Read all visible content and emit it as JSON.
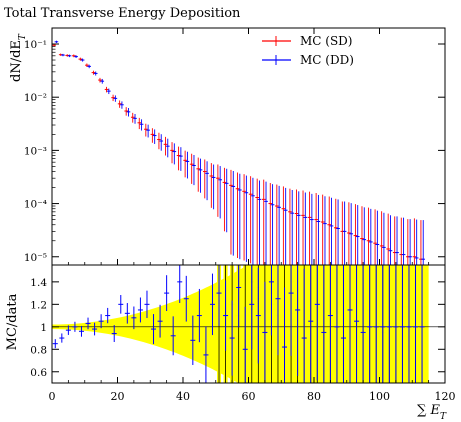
{
  "chart_data": {
    "type": "scatter",
    "title": "Total Transverse Energy Deposition",
    "xlabel": "∑ E_T",
    "ylabel": "dN/dE_T",
    "ratio_ylabel": "MC/data",
    "xlim": [
      0,
      120
    ],
    "ylim": [
      7e-06,
      0.2
    ],
    "ratio_ylim": [
      0.5,
      1.55
    ],
    "yscale": "log",
    "grid": false,
    "legend_position": "top-right",
    "x_ticks": [
      "0",
      "20",
      "40",
      "60",
      "80",
      "100",
      "120"
    ],
    "y_ticks": [
      "10⁻¹",
      "10⁻²",
      "10⁻³",
      "10⁻⁴",
      "10⁻⁵"
    ],
    "y_tick_values": [
      0.1,
      0.01,
      0.001,
      0.0001,
      1e-05
    ],
    "ratio_ticks": [
      "0.6",
      "0.8",
      "1",
      "1.2",
      "1.4"
    ],
    "ratio_tick_values": [
      0.6,
      0.8,
      1.0,
      1.2,
      1.4
    ],
    "series": [
      {
        "name": "MC (SD)",
        "color": "#ff0000",
        "x": [
          1,
          3,
          5,
          7,
          9,
          11,
          13,
          15,
          17,
          19,
          21,
          23,
          25,
          27,
          29,
          31,
          33,
          35,
          37,
          39,
          41,
          43,
          45,
          47,
          49,
          51,
          53,
          55,
          57,
          59,
          61,
          63,
          65,
          67,
          69,
          71,
          73,
          75,
          77,
          79,
          81,
          83,
          85,
          87,
          89,
          91,
          93,
          95,
          97,
          99,
          101,
          103,
          105,
          107,
          109,
          111,
          113
        ],
        "y": [
          0.095,
          0.063,
          0.061,
          0.06,
          0.052,
          0.04,
          0.029,
          0.021,
          0.014,
          0.0098,
          0.0075,
          0.0055,
          0.0042,
          0.0033,
          0.0025,
          0.002,
          0.0016,
          0.0013,
          0.001,
          0.0008,
          0.00065,
          0.00055,
          0.00045,
          0.0004,
          0.00033,
          0.0003,
          0.00025,
          0.00022,
          0.00019,
          0.00017,
          0.00015,
          0.00013,
          0.00012,
          0.0001,
          9e-05,
          8e-05,
          7e-05,
          6.5e-05,
          6e-05,
          5.5e-05,
          5e-05,
          4.5e-05,
          4e-05,
          3.5e-05,
          3e-05,
          2.8e-05,
          2.5e-05,
          2.2e-05,
          2e-05,
          1.8e-05,
          1.6e-05,
          1.4e-05,
          1.2e-05,
          1.1e-05,
          1e-05,
          1e-05,
          9e-06
        ]
      },
      {
        "name": "MC (DD)",
        "color": "#0000ff",
        "x": [
          1,
          3,
          5,
          7,
          9,
          11,
          13,
          15,
          17,
          19,
          21,
          23,
          25,
          27,
          29,
          31,
          33,
          35,
          37,
          39,
          41,
          43,
          45,
          47,
          49,
          51,
          53,
          55,
          57,
          59,
          61,
          63,
          65,
          67,
          69,
          71,
          73,
          75,
          77,
          79,
          81,
          83,
          85,
          87,
          89,
          91,
          93,
          95,
          97,
          99,
          101,
          103,
          105,
          107,
          109,
          111,
          113
        ],
        "y": [
          0.11,
          0.062,
          0.06,
          0.058,
          0.05,
          0.038,
          0.028,
          0.02,
          0.013,
          0.0095,
          0.0072,
          0.0053,
          0.004,
          0.0031,
          0.0024,
          0.0019,
          0.0015,
          0.0012,
          0.00095,
          0.00078,
          0.00062,
          0.00052,
          0.00043,
          0.00037,
          0.00031,
          0.00028,
          0.00024,
          0.00021,
          0.00018,
          0.00016,
          0.00014,
          0.00012,
          0.00011,
          9.5e-05,
          8.5e-05,
          7.5e-05,
          6.6e-05,
          6e-05,
          5.5e-05,
          5e-05,
          4.6e-05,
          4.2e-05,
          3.8e-05,
          3.4e-05,
          3e-05,
          2.7e-05,
          2.4e-05,
          2.1e-05,
          1.9e-05,
          1.7e-05,
          1.5e-05,
          1.3e-05,
          1.2e-05,
          1.1e-05,
          1e-05,
          9.5e-06,
          9e-06
        ]
      }
    ],
    "ratio_series": [
      {
        "name": "MC (DD)",
        "color": "#0000ff",
        "x": [
          1,
          3,
          5,
          7,
          9,
          11,
          13,
          15,
          17,
          19,
          21,
          23,
          25,
          27,
          29,
          31,
          33,
          35,
          37,
          39,
          41,
          43,
          45,
          47,
          49,
          51,
          53,
          55,
          57,
          59,
          61,
          63,
          65,
          67,
          69,
          71,
          73,
          75,
          77,
          79,
          81,
          83,
          85,
          87,
          89,
          91,
          93,
          95,
          97,
          99,
          101,
          103,
          105,
          107,
          109,
          111,
          113
        ],
        "y": [
          0.85,
          0.9,
          0.97,
          1.0,
          0.96,
          1.03,
          0.98,
          1.05,
          1.1,
          0.94,
          1.2,
          1.12,
          1.08,
          1.15,
          1.2,
          0.98,
          1.05,
          1.3,
          0.92,
          1.4,
          1.25,
          0.88,
          1.1,
          0.75,
          1.2,
          1.3,
          1.1,
          0.9,
          1.35,
          0.8,
          1.2,
          1.1,
          0.95,
          1.4,
          1.25,
          0.82,
          1.3,
          1.15,
          0.9,
          1.05,
          1.2,
          0.95,
          1.1,
          1.0,
          0.9,
          1.15,
          1.05,
          0.95,
          1.0,
          1.0,
          1.0,
          1.0,
          1.0,
          1.0,
          1.0,
          1.0,
          1.0
        ]
      }
    ]
  }
}
